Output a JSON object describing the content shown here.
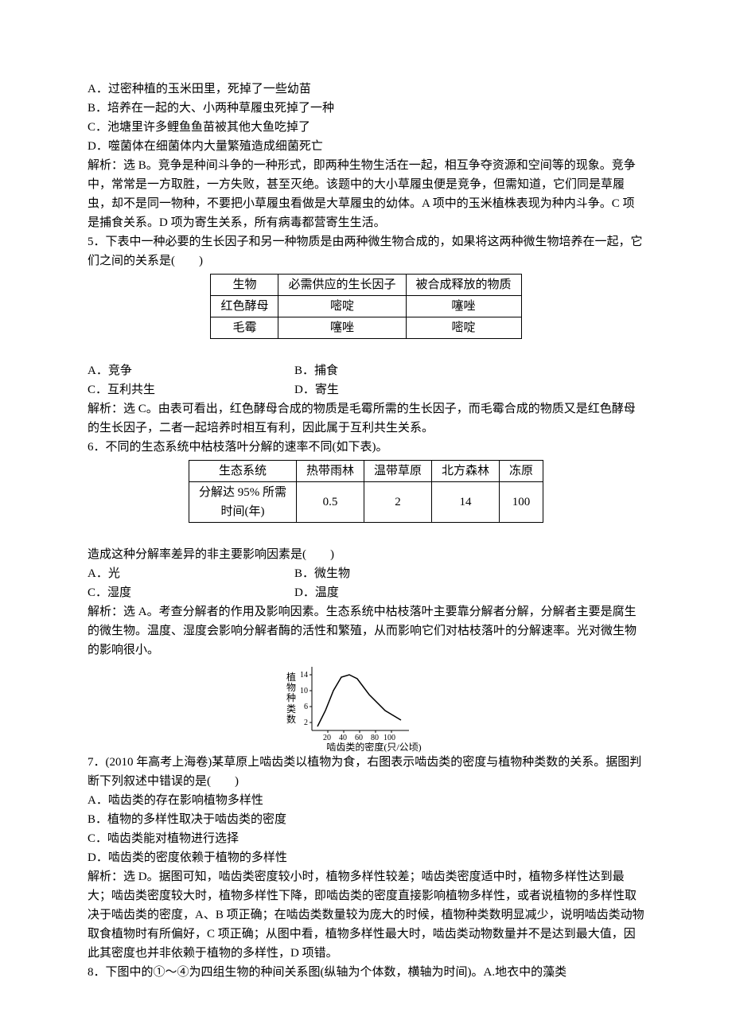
{
  "q4": {
    "optA": "A．过密种植的玉米田里，死掉了一些幼苗",
    "optB": "B．培养在一起的大、小两种草履虫死掉了一种",
    "optC": "C．池塘里许多鲤鱼鱼苗被其他大鱼吃掉了",
    "optD": "D．噬菌体在细菌体内大量繁殖造成细菌死亡",
    "explain": "解析：选 B。竞争是种间斗争的一种形式，即两种生物生活在一起，相互争夺资源和空间等的现象。竞争中，常常是一方取胜，一方失败，甚至灭绝。该题中的大小草履虫便是竞争，但需知道，它们同是草履虫，却不是同一物种，不要把小草履虫看做是大草履虫的幼体。A 项中的玉米植株表现为种内斗争。C 项是捕食关系。D 项为寄生关系，所有病毒都营寄生生活。"
  },
  "q5": {
    "stem": "5．下表中一种必要的生长因子和另一种物质是由两种微生物合成的，如果将这两种微生物培养在一起，它们之间的关系是(　　)",
    "table": {
      "headers": [
        "生物",
        "必需供应的生长因子",
        "被合成释放的物质"
      ],
      "rows": [
        [
          "红色酵母",
          "嘧啶",
          "噻唑"
        ],
        [
          "毛霉",
          "噻唑",
          "嘧啶"
        ]
      ]
    },
    "optA": "A．竞争",
    "optB": "B．捕食",
    "optC": "C．互利共生",
    "optD": "D．寄生",
    "explain": "解析：选 C。由表可看出，红色酵母合成的物质是毛霉所需的生长因子，而毛霉合成的物质又是红色酵母的生长因子，二者一起培养时相互有利，因此属于互利共生关系。"
  },
  "q6": {
    "stem": "6．不同的生态系统中枯枝落叶分解的速率不同(如下表)。",
    "table": {
      "headers": [
        "生态系统",
        "热带雨林",
        "温带草原",
        "北方森林",
        "冻原"
      ],
      "row_label": "分解达 95% 所需时间(年)",
      "values": [
        "0.5",
        "2",
        "14",
        "100"
      ]
    },
    "sub": "造成这种分解率差异的非主要影响因素是(　　)",
    "optA": "A．光",
    "optB": "B．微生物",
    "optC": "C．湿度",
    "optD": "D．温度",
    "explain": "解析：选 A。考查分解者的作用及影响因素。生态系统中枯枝落叶主要靠分解者分解，分解者主要是腐生的微生物。温度、湿度会影响分解者酶的活性和繁殖，从而影响它们对枯枝落叶的分解速率。光对微生物的影响很小。"
  },
  "chart": {
    "y_label_lines": [
      "植",
      "物",
      "种",
      "类",
      "数"
    ],
    "y_ticks": [
      "14",
      "10",
      "6",
      "2"
    ],
    "x_ticks": [
      "20",
      "40",
      "60",
      "80",
      "100"
    ],
    "x_label": "啮齿类的密度(只/公顷)",
    "curve_points": [
      [
        15,
        80
      ],
      [
        25,
        60
      ],
      [
        35,
        35
      ],
      [
        45,
        18
      ],
      [
        55,
        15
      ],
      [
        65,
        20
      ],
      [
        80,
        40
      ],
      [
        100,
        60
      ],
      [
        120,
        72
      ]
    ],
    "axis_color": "#000000",
    "line_color": "#000000",
    "background": "#ffffff"
  },
  "q7": {
    "stem": "7．(2010 年高考上海卷)某草原上啮齿类以植物为食，右图表示啮齿类的密度与植物种类数的关系。据图判断下列叙述中错误的是(　　)",
    "optA": "A．啮齿类的存在影响植物多样性",
    "optB": "B．植物的多样性取决于啮齿类的密度",
    "optC": "C．啮齿类能对植物进行选择",
    "optD": "D．啮齿类的密度依赖于植物的多样性",
    "explain": "解析：选 D。据图可知，啮齿类密度较小时，植物多样性较差；啮齿类密度适中时，植物多样性达到最大；啮齿类密度较大时，植物多样性下降，即啮齿类的密度直接影响植物多样性，或者说植物的多样性取决于啮齿类的密度，A、B 项正确；在啮齿类数量较为庞大的时候，植物种类数明显减少，说明啮齿类动物取食植物时有所偏好，C 项正确；从图中看，植物多样性最大时，啮齿类动物数量并不是达到最大值，因此其密度也并非依赖于植物的多样性，D 项错。"
  },
  "q8": {
    "stem": "8．下图中的①～④为四组生物的种间关系图(纵轴为个体数，横轴为时间)。A.地衣中的藻类"
  }
}
